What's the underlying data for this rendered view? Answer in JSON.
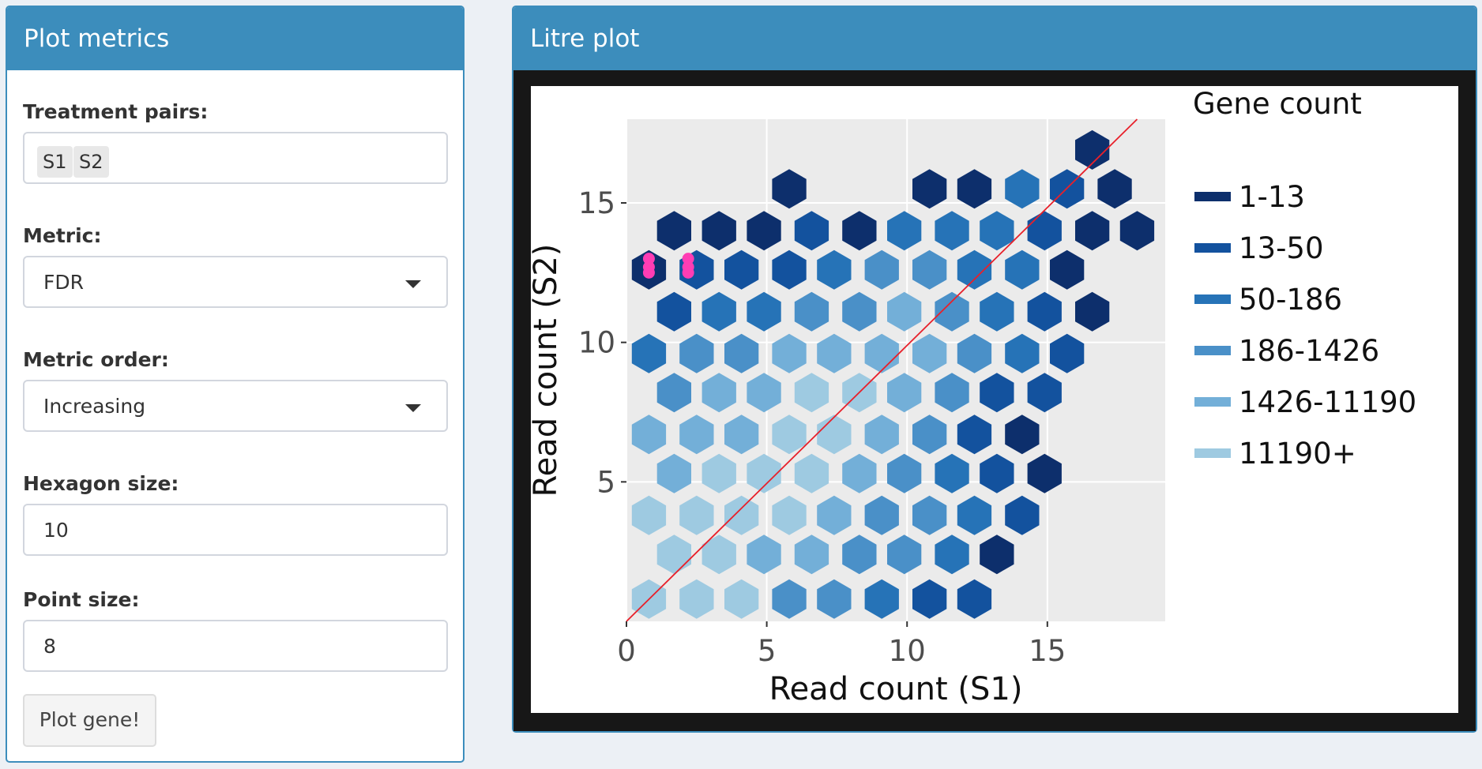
{
  "left_panel": {
    "title": "Plot metrics",
    "treatment_pairs": {
      "label": "Treatment pairs:",
      "tags": [
        "S1",
        "S2"
      ]
    },
    "metric": {
      "label": "Metric:",
      "value": "FDR"
    },
    "metric_order": {
      "label": "Metric order:",
      "value": "Increasing"
    },
    "hexagon_size": {
      "label": "Hexagon size:",
      "value": "10"
    },
    "point_size": {
      "label": "Point size:",
      "value": "8"
    },
    "plot_button": "Plot gene!"
  },
  "right_panel": {
    "title": "Litre plot"
  },
  "colors": {
    "header": "#3c8dbc",
    "panel_bg": "#ecf0f5",
    "highlight_point": "#ff3db4",
    "diag_line": "#e8202a"
  },
  "chart_data": {
    "type": "hexbin",
    "xlabel": "Read count (S1)",
    "ylabel": "Read count (S2)",
    "xlim": [
      0,
      19.2
    ],
    "ylim": [
      0,
      18.0
    ],
    "x_ticks": [
      0,
      5,
      10,
      15
    ],
    "y_ticks": [
      5,
      10,
      15
    ],
    "legend": {
      "title": "Gene count",
      "position": "right",
      "items": [
        {
          "label": "1-13",
          "color": "#0d2f6c"
        },
        {
          "label": "13-50",
          "color": "#13529e"
        },
        {
          "label": "50-186",
          "color": "#2673b7"
        },
        {
          "label": "186-1426",
          "color": "#4a90c8"
        },
        {
          "label": "1426-11190",
          "color": "#73afd8"
        },
        {
          "label": "11190+",
          "color": "#9ecae1"
        }
      ]
    },
    "hex_bins": [
      {
        "x": 0.8,
        "y": 0.8,
        "c": 5
      },
      {
        "x": 2.5,
        "y": 0.8,
        "c": 5
      },
      {
        "x": 4.1,
        "y": 0.8,
        "c": 5
      },
      {
        "x": 5.8,
        "y": 0.8,
        "c": 3
      },
      {
        "x": 7.4,
        "y": 0.8,
        "c": 3
      },
      {
        "x": 9.1,
        "y": 0.8,
        "c": 2
      },
      {
        "x": 10.8,
        "y": 0.8,
        "c": 1
      },
      {
        "x": 12.4,
        "y": 0.8,
        "c": 1
      },
      {
        "x": 1.7,
        "y": 2.4,
        "c": 5
      },
      {
        "x": 3.3,
        "y": 2.4,
        "c": 5
      },
      {
        "x": 4.9,
        "y": 2.4,
        "c": 4
      },
      {
        "x": 6.6,
        "y": 2.4,
        "c": 4
      },
      {
        "x": 8.3,
        "y": 2.4,
        "c": 3
      },
      {
        "x": 9.9,
        "y": 2.4,
        "c": 3
      },
      {
        "x": 11.6,
        "y": 2.4,
        "c": 2
      },
      {
        "x": 13.2,
        "y": 2.4,
        "c": 0
      },
      {
        "x": 0.8,
        "y": 3.8,
        "c": 5
      },
      {
        "x": 2.5,
        "y": 3.8,
        "c": 5
      },
      {
        "x": 4.1,
        "y": 3.8,
        "c": 5
      },
      {
        "x": 5.8,
        "y": 3.8,
        "c": 5
      },
      {
        "x": 7.4,
        "y": 3.8,
        "c": 4
      },
      {
        "x": 9.1,
        "y": 3.8,
        "c": 3
      },
      {
        "x": 10.8,
        "y": 3.8,
        "c": 3
      },
      {
        "x": 12.4,
        "y": 3.8,
        "c": 2
      },
      {
        "x": 14.1,
        "y": 3.8,
        "c": 1
      },
      {
        "x": 1.7,
        "y": 5.3,
        "c": 4
      },
      {
        "x": 3.3,
        "y": 5.3,
        "c": 5
      },
      {
        "x": 4.9,
        "y": 5.3,
        "c": 5
      },
      {
        "x": 6.6,
        "y": 5.3,
        "c": 5
      },
      {
        "x": 8.3,
        "y": 5.3,
        "c": 4
      },
      {
        "x": 9.9,
        "y": 5.3,
        "c": 3
      },
      {
        "x": 11.6,
        "y": 5.3,
        "c": 2
      },
      {
        "x": 13.2,
        "y": 5.3,
        "c": 1
      },
      {
        "x": 14.9,
        "y": 5.3,
        "c": 0
      },
      {
        "x": 0.8,
        "y": 6.7,
        "c": 4
      },
      {
        "x": 2.5,
        "y": 6.7,
        "c": 4
      },
      {
        "x": 4.1,
        "y": 6.7,
        "c": 4
      },
      {
        "x": 5.8,
        "y": 6.7,
        "c": 5
      },
      {
        "x": 7.4,
        "y": 6.7,
        "c": 5
      },
      {
        "x": 9.1,
        "y": 6.7,
        "c": 4
      },
      {
        "x": 10.8,
        "y": 6.7,
        "c": 3
      },
      {
        "x": 12.4,
        "y": 6.7,
        "c": 1
      },
      {
        "x": 14.1,
        "y": 6.7,
        "c": 0
      },
      {
        "x": 1.7,
        "y": 8.2,
        "c": 3
      },
      {
        "x": 3.3,
        "y": 8.2,
        "c": 4
      },
      {
        "x": 4.9,
        "y": 8.2,
        "c": 4
      },
      {
        "x": 6.6,
        "y": 8.2,
        "c": 5
      },
      {
        "x": 8.3,
        "y": 8.2,
        "c": 5
      },
      {
        "x": 9.9,
        "y": 8.2,
        "c": 4
      },
      {
        "x": 11.6,
        "y": 8.2,
        "c": 3
      },
      {
        "x": 13.2,
        "y": 8.2,
        "c": 1
      },
      {
        "x": 14.9,
        "y": 8.2,
        "c": 1
      },
      {
        "x": 0.8,
        "y": 9.6,
        "c": 2
      },
      {
        "x": 2.5,
        "y": 9.6,
        "c": 3
      },
      {
        "x": 4.1,
        "y": 9.6,
        "c": 3
      },
      {
        "x": 5.8,
        "y": 9.6,
        "c": 4
      },
      {
        "x": 7.4,
        "y": 9.6,
        "c": 4
      },
      {
        "x": 9.1,
        "y": 9.6,
        "c": 4
      },
      {
        "x": 10.8,
        "y": 9.6,
        "c": 4
      },
      {
        "x": 12.4,
        "y": 9.6,
        "c": 3
      },
      {
        "x": 14.1,
        "y": 9.6,
        "c": 2
      },
      {
        "x": 15.7,
        "y": 9.6,
        "c": 1
      },
      {
        "x": 1.7,
        "y": 11.1,
        "c": 1
      },
      {
        "x": 3.3,
        "y": 11.1,
        "c": 2
      },
      {
        "x": 4.9,
        "y": 11.1,
        "c": 2
      },
      {
        "x": 6.6,
        "y": 11.1,
        "c": 3
      },
      {
        "x": 8.3,
        "y": 11.1,
        "c": 3
      },
      {
        "x": 9.9,
        "y": 11.1,
        "c": 4
      },
      {
        "x": 11.6,
        "y": 11.1,
        "c": 3
      },
      {
        "x": 13.2,
        "y": 11.1,
        "c": 2
      },
      {
        "x": 14.9,
        "y": 11.1,
        "c": 1
      },
      {
        "x": 16.6,
        "y": 11.1,
        "c": 0
      },
      {
        "x": 0.8,
        "y": 12.6,
        "c": 0
      },
      {
        "x": 2.5,
        "y": 12.6,
        "c": 1
      },
      {
        "x": 4.1,
        "y": 12.6,
        "c": 1
      },
      {
        "x": 5.8,
        "y": 12.6,
        "c": 1
      },
      {
        "x": 7.4,
        "y": 12.6,
        "c": 2
      },
      {
        "x": 9.1,
        "y": 12.6,
        "c": 3
      },
      {
        "x": 10.8,
        "y": 12.6,
        "c": 3
      },
      {
        "x": 12.4,
        "y": 12.6,
        "c": 2
      },
      {
        "x": 14.1,
        "y": 12.6,
        "c": 2
      },
      {
        "x": 15.7,
        "y": 12.6,
        "c": 0
      },
      {
        "x": 1.7,
        "y": 14.0,
        "c": 0
      },
      {
        "x": 3.3,
        "y": 14.0,
        "c": 0
      },
      {
        "x": 4.9,
        "y": 14.0,
        "c": 0
      },
      {
        "x": 6.6,
        "y": 14.0,
        "c": 1
      },
      {
        "x": 8.3,
        "y": 14.0,
        "c": 0
      },
      {
        "x": 9.9,
        "y": 14.0,
        "c": 2
      },
      {
        "x": 11.6,
        "y": 14.0,
        "c": 2
      },
      {
        "x": 13.2,
        "y": 14.0,
        "c": 2
      },
      {
        "x": 14.9,
        "y": 14.0,
        "c": 1
      },
      {
        "x": 16.6,
        "y": 14.0,
        "c": 0
      },
      {
        "x": 18.2,
        "y": 14.0,
        "c": 0
      },
      {
        "x": 5.8,
        "y": 15.5,
        "c": 0
      },
      {
        "x": 10.8,
        "y": 15.5,
        "c": 0
      },
      {
        "x": 12.4,
        "y": 15.5,
        "c": 0
      },
      {
        "x": 14.1,
        "y": 15.5,
        "c": 2
      },
      {
        "x": 15.7,
        "y": 15.5,
        "c": 1
      },
      {
        "x": 17.4,
        "y": 15.5,
        "c": 0
      },
      {
        "x": 16.6,
        "y": 16.9,
        "c": 0
      }
    ],
    "highlight_points": [
      {
        "x": 0.8,
        "y": 13.0
      },
      {
        "x": 0.8,
        "y": 12.7
      },
      {
        "x": 0.8,
        "y": 12.5
      },
      {
        "x": 2.2,
        "y": 13.0
      },
      {
        "x": 2.2,
        "y": 12.7
      },
      {
        "x": 2.2,
        "y": 12.5
      }
    ],
    "diagonal": {
      "from": [
        0,
        0
      ],
      "to": [
        18.2,
        18.0
      ]
    }
  }
}
